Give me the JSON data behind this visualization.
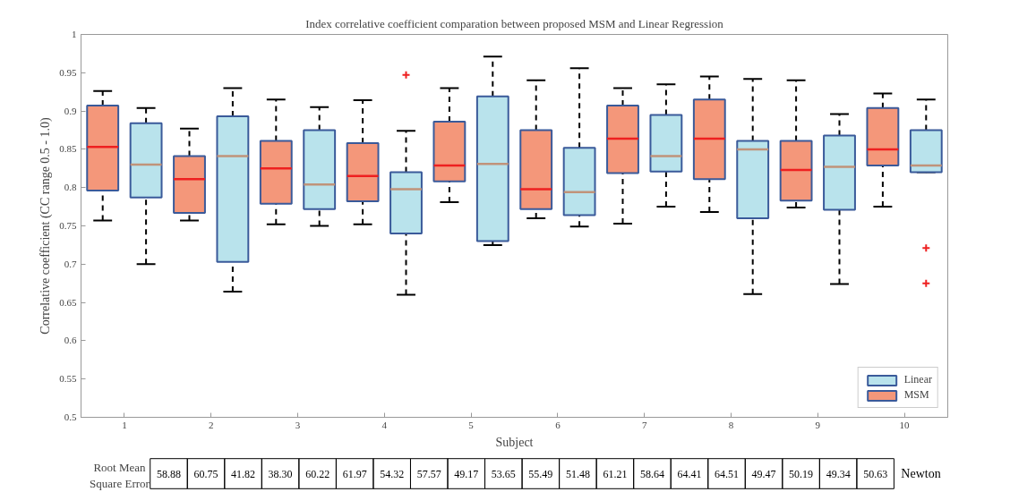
{
  "chart_data": {
    "type": "box",
    "title": "Index correlative coefficient comparation between proposed MSM and Linear Regression",
    "xlabel": "Subject",
    "ylabel": "Correlative coefficient (CC range 0.5 - 1.0)",
    "categories": [
      "1",
      "2",
      "3",
      "4",
      "5",
      "6",
      "7",
      "8",
      "9",
      "10"
    ],
    "ylim": [
      0.5,
      1
    ],
    "yticks": [
      0.5,
      0.55,
      0.6,
      0.65,
      0.7,
      0.75,
      0.8,
      0.85,
      0.9,
      0.95,
      1
    ],
    "grid": false,
    "legend": "bottom right",
    "series": [
      {
        "name": "MSM",
        "color": "#f4977a",
        "boxes": [
          {
            "low": 0.757,
            "q1": 0.796,
            "median": 0.853,
            "q3": 0.907,
            "high": 0.926
          },
          {
            "low": 0.757,
            "q1": 0.767,
            "median": 0.811,
            "q3": 0.841,
            "high": 0.877
          },
          {
            "low": 0.752,
            "q1": 0.779,
            "median": 0.825,
            "q3": 0.861,
            "high": 0.915
          },
          {
            "low": 0.752,
            "q1": 0.782,
            "median": 0.815,
            "q3": 0.858,
            "high": 0.914
          },
          {
            "low": 0.781,
            "q1": 0.808,
            "median": 0.829,
            "q3": 0.886,
            "high": 0.93
          },
          {
            "low": 0.76,
            "q1": 0.772,
            "median": 0.798,
            "q3": 0.875,
            "high": 0.94
          },
          {
            "low": 0.753,
            "q1": 0.819,
            "median": 0.864,
            "q3": 0.907,
            "high": 0.93
          },
          {
            "low": 0.768,
            "q1": 0.811,
            "median": 0.864,
            "q3": 0.915,
            "high": 0.945
          },
          {
            "low": 0.774,
            "q1": 0.783,
            "median": 0.823,
            "q3": 0.861,
            "high": 0.94
          },
          {
            "low": 0.775,
            "q1": 0.829,
            "median": 0.85,
            "q3": 0.904,
            "high": 0.923
          }
        ]
      },
      {
        "name": "Linear",
        "color": "#b9e3ec",
        "boxes": [
          {
            "low": 0.7,
            "q1": 0.787,
            "median": 0.83,
            "q3": 0.884,
            "high": 0.904
          },
          {
            "low": 0.664,
            "q1": 0.703,
            "median": 0.841,
            "q3": 0.893,
            "high": 0.93
          },
          {
            "low": 0.75,
            "q1": 0.772,
            "median": 0.804,
            "q3": 0.875,
            "high": 0.905
          },
          {
            "low": 0.66,
            "q1": 0.74,
            "median": 0.798,
            "q3": 0.82,
            "high": 0.874,
            "outliers": [
              0.947
            ]
          },
          {
            "low": 0.725,
            "q1": 0.73,
            "median": 0.831,
            "q3": 0.919,
            "high": 0.971
          },
          {
            "low": 0.749,
            "q1": 0.764,
            "median": 0.794,
            "q3": 0.852,
            "high": 0.956
          },
          {
            "low": 0.775,
            "q1": 0.821,
            "median": 0.841,
            "q3": 0.895,
            "high": 0.935
          },
          {
            "low": 0.661,
            "q1": 0.76,
            "median": 0.85,
            "q3": 0.861,
            "high": 0.942
          },
          {
            "low": 0.674,
            "q1": 0.771,
            "median": 0.827,
            "q3": 0.868,
            "high": 0.896
          },
          {
            "low": 0.82,
            "q1": 0.82,
            "median": 0.829,
            "q3": 0.875,
            "high": 0.915,
            "outliers": [
              0.721,
              0.675
            ]
          }
        ]
      }
    ],
    "annotations": [
      "Root Mean Square Error",
      "58.88",
      "60.75",
      "41.82",
      "38.30",
      "60.22",
      "61.97",
      "54.32",
      "57.57",
      "49.17",
      "53.65",
      "55.49",
      "51.48",
      "61.21",
      "58.64",
      "64.41",
      "64.51",
      "49.47",
      "50.19",
      "49.34",
      "50.63",
      "Newton"
    ]
  }
}
